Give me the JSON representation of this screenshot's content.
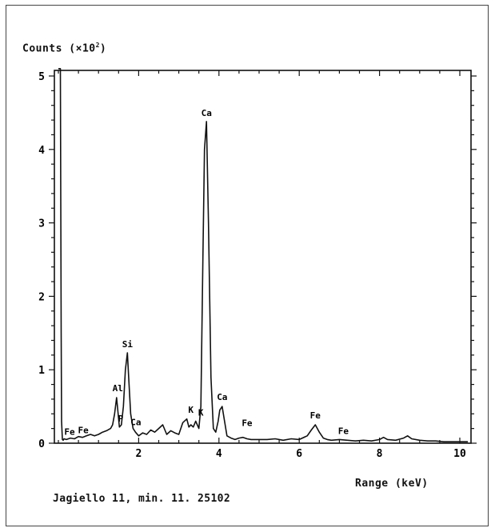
{
  "chart_data": {
    "type": "line",
    "ylabel_text": "Counts (×10",
    "ylabel_exp": "2",
    "ylabel_close": ")",
    "xlabel": "Range (keV)",
    "caption": "Jagiello 11, min. 11. 25102",
    "xlim": [
      0,
      10.5
    ],
    "ylim": [
      0,
      5.1
    ],
    "x_ticks": [
      2,
      4,
      6,
      8,
      10
    ],
    "y_ticks": [
      0,
      1,
      2,
      3,
      4,
      5
    ],
    "grid": false,
    "series": [
      {
        "x": [
          0.0,
          0.05,
          0.07,
          0.08,
          0.1,
          0.12,
          0.14,
          0.2,
          0.3,
          0.4,
          0.5,
          0.6,
          0.7,
          0.8,
          0.9,
          1.0,
          1.1,
          1.2,
          1.3,
          1.35,
          1.4,
          1.45,
          1.48,
          1.52,
          1.57,
          1.62,
          1.67,
          1.72,
          1.75,
          1.8,
          1.86,
          1.92,
          2.0,
          2.1,
          2.2,
          2.3,
          2.4,
          2.5,
          2.6,
          2.7,
          2.8,
          2.9,
          3.0,
          3.1,
          3.2,
          3.25,
          3.3,
          3.36,
          3.42,
          3.5,
          3.55,
          3.6,
          3.64,
          3.69,
          3.74,
          3.8,
          3.86,
          3.92,
          3.98,
          4.02,
          4.08,
          4.14,
          4.2,
          4.3,
          4.4,
          4.5,
          4.6,
          4.7,
          4.8,
          5.0,
          5.2,
          5.4,
          5.6,
          5.8,
          6.0,
          6.2,
          6.3,
          6.4,
          6.5,
          6.6,
          6.7,
          6.8,
          7.0,
          7.2,
          7.4,
          7.6,
          7.8,
          8.0,
          8.1,
          8.2,
          8.4,
          8.6,
          8.7,
          8.8,
          9.0,
          9.2,
          9.4,
          9.6,
          9.8,
          10.0,
          10.2
        ],
        "y": [
          5.1,
          5.1,
          1.5,
          0.3,
          0.05,
          0.04,
          0.06,
          0.05,
          0.07,
          0.06,
          0.09,
          0.08,
          0.1,
          0.12,
          0.1,
          0.12,
          0.15,
          0.17,
          0.2,
          0.25,
          0.4,
          0.62,
          0.45,
          0.22,
          0.25,
          0.5,
          1.0,
          1.23,
          0.9,
          0.4,
          0.2,
          0.15,
          0.1,
          0.14,
          0.12,
          0.18,
          0.15,
          0.2,
          0.25,
          0.12,
          0.17,
          0.14,
          0.12,
          0.28,
          0.33,
          0.22,
          0.25,
          0.22,
          0.3,
          0.2,
          0.5,
          2.5,
          4.0,
          4.38,
          3.0,
          0.9,
          0.2,
          0.15,
          0.3,
          0.45,
          0.5,
          0.3,
          0.1,
          0.07,
          0.05,
          0.07,
          0.08,
          0.06,
          0.05,
          0.05,
          0.05,
          0.06,
          0.04,
          0.06,
          0.05,
          0.1,
          0.18,
          0.25,
          0.15,
          0.07,
          0.05,
          0.04,
          0.05,
          0.04,
          0.03,
          0.04,
          0.03,
          0.05,
          0.08,
          0.05,
          0.04,
          0.07,
          0.1,
          0.06,
          0.04,
          0.03,
          0.03,
          0.02,
          0.02,
          0.02,
          0.02
        ]
      }
    ],
    "annotations": [
      {
        "text": "Ca",
        "x": 3.69,
        "y": 4.38
      },
      {
        "text": "Si",
        "x": 1.72,
        "y": 1.23
      },
      {
        "text": "Al",
        "x": 1.48,
        "y": 0.63
      },
      {
        "text": "Ca",
        "x": 4.08,
        "y": 0.51
      },
      {
        "text": "K",
        "x": 3.3,
        "y": 0.34
      },
      {
        "text": "K",
        "x": 3.55,
        "y": 0.3
      },
      {
        "text": "Fe",
        "x": 6.4,
        "y": 0.26
      },
      {
        "text": "Fe",
        "x": 4.7,
        "y": 0.16
      },
      {
        "text": "Fe",
        "x": 7.1,
        "y": 0.05
      },
      {
        "text": "P",
        "x": 1.55,
        "y": 0.22
      },
      {
        "text": "Ca",
        "x": 1.93,
        "y": 0.17
      },
      {
        "text": "Fe",
        "x": 0.62,
        "y": 0.06
      },
      {
        "text": "Fe",
        "x": 0.28,
        "y": 0.04
      }
    ]
  }
}
